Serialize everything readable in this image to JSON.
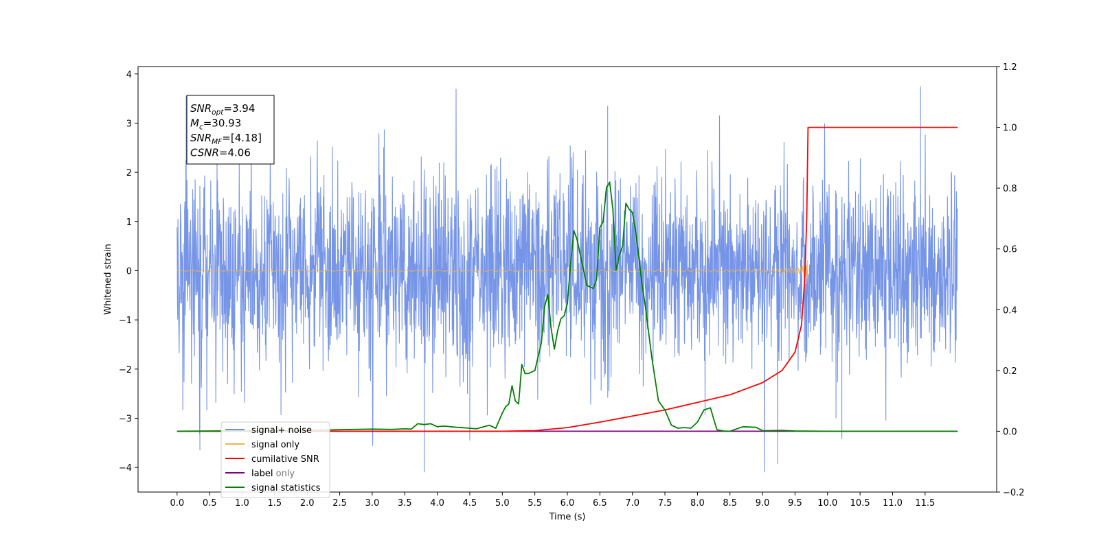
{
  "chart_data": {
    "type": "line",
    "xlabel": "Time (s)",
    "ylabel": "Whitened strain",
    "xlim": [
      -0.6,
      12.6
    ],
    "ylim": [
      -4.5,
      4.15
    ],
    "ylim_right": [
      -0.2,
      1.2
    ],
    "x_ticks": [
      "0.0",
      "0.5",
      "1.0",
      "1.5",
      "2.0",
      "2.5",
      "3.0",
      "3.5",
      "4.0",
      "4.5",
      "5.0",
      "5.5",
      "6.0",
      "6.5",
      "7.0",
      "7.5",
      "8.0",
      "8.5",
      "9.0",
      "9.5",
      "10.0",
      "10.5",
      "11.0",
      "11.5"
    ],
    "y_ticks": [
      {
        "value": 4,
        "label": "4"
      },
      {
        "value": 3,
        "label": "3"
      },
      {
        "value": 2,
        "label": "2"
      },
      {
        "value": 1,
        "label": "1"
      },
      {
        "value": 0,
        "label": "0"
      },
      {
        "value": -1,
        "label": "−1"
      },
      {
        "value": -2,
        "label": "−2"
      },
      {
        "value": -3,
        "label": "−3"
      },
      {
        "value": -4,
        "label": "−4"
      }
    ],
    "y_ticks_right": [
      "1.2",
      "1.0",
      "0.8",
      "0.6",
      "0.4",
      "0.2",
      "0.0",
      "−0.2"
    ],
    "stats_box": {
      "lines": [
        {
          "main": "SNR",
          "sub": "opt",
          "rest": "=3.94"
        },
        {
          "main": "M",
          "sub": "c",
          "rest": "=30.93"
        },
        {
          "main": "SNR",
          "sub": "MF",
          "rest": "=[4.18]"
        },
        {
          "main": "CSNR",
          "sub": "",
          "rest": "=4.06"
        }
      ]
    },
    "legend": {
      "placement": "lower-left",
      "entries": [
        {
          "label": "signal+ noise",
          "color": "#6f8fe6"
        },
        {
          "label": "signal only",
          "color": "#f5b04a"
        },
        {
          "label": "cumilative SNR",
          "color": "#ff0000"
        },
        {
          "label": "label",
          "color": "#800080"
        },
        {
          "label": "signal statistics",
          "color": "#008000"
        }
      ],
      "hidden_behind": "label only"
    },
    "series": [
      {
        "name": "signal+ noise",
        "axis": "left",
        "color": "#6f8fe6",
        "x_range": [
          0.0,
          12.0
        ],
        "noise_envelope": [
          -2.0,
          2.0
        ],
        "spike_max": 3.75,
        "spike_min": -4.1
      },
      {
        "name": "signal only",
        "axis": "left",
        "color": "#f5b04a",
        "x_range": [
          0.0,
          9.7
        ],
        "merger_time": 9.7,
        "peak_amplitude": 0.8
      },
      {
        "name": "cumilative SNR",
        "axis": "right",
        "color": "#ff0000",
        "x": [
          0.0,
          5.0,
          5.5,
          6.0,
          6.5,
          7.0,
          7.5,
          8.0,
          8.5,
          9.0,
          9.3,
          9.5,
          9.6,
          9.65,
          9.68,
          9.7,
          12.0
        ],
        "y": [
          0.0,
          0.0,
          0.002,
          0.012,
          0.03,
          0.05,
          0.07,
          0.095,
          0.12,
          0.16,
          0.2,
          0.26,
          0.35,
          0.5,
          0.7,
          1.0,
          1.0
        ]
      },
      {
        "name": "label",
        "axis": "right",
        "color": "#800080",
        "x": [
          0.0,
          12.0
        ],
        "y": [
          0.0,
          0.0
        ]
      },
      {
        "name": "signal statistics",
        "axis": "right",
        "color": "#008000",
        "x": [
          0.0,
          2.0,
          3.0,
          3.3,
          3.5,
          3.6,
          3.7,
          3.8,
          3.9,
          4.0,
          4.1,
          4.3,
          4.5,
          4.6,
          4.8,
          4.9,
          5.0,
          5.05,
          5.1,
          5.15,
          5.2,
          5.25,
          5.3,
          5.35,
          5.4,
          5.5,
          5.6,
          5.65,
          5.7,
          5.75,
          5.8,
          5.85,
          5.9,
          5.95,
          6.0,
          6.05,
          6.1,
          6.15,
          6.2,
          6.3,
          6.4,
          6.45,
          6.5,
          6.55,
          6.6,
          6.65,
          6.7,
          6.75,
          6.8,
          6.85,
          6.9,
          6.95,
          7.0,
          7.05,
          7.1,
          7.15,
          7.2,
          7.3,
          7.4,
          7.5,
          7.6,
          7.7,
          7.8,
          7.9,
          8.0,
          8.1,
          8.2,
          8.25,
          8.3,
          8.4,
          8.5,
          8.7,
          8.9,
          9.0,
          9.1,
          9.3,
          9.5,
          10.0,
          12.0
        ],
        "y": [
          0.0,
          0.003,
          0.007,
          0.006,
          0.008,
          0.007,
          0.025,
          0.022,
          0.025,
          0.015,
          0.017,
          0.013,
          0.01,
          0.008,
          0.02,
          0.01,
          0.06,
          0.08,
          0.09,
          0.15,
          0.1,
          0.09,
          0.22,
          0.19,
          0.19,
          0.2,
          0.29,
          0.41,
          0.45,
          0.34,
          0.27,
          0.33,
          0.37,
          0.38,
          0.42,
          0.55,
          0.66,
          0.63,
          0.58,
          0.48,
          0.47,
          0.5,
          0.67,
          0.69,
          0.8,
          0.82,
          0.73,
          0.53,
          0.58,
          0.61,
          0.75,
          0.73,
          0.72,
          0.66,
          0.57,
          0.48,
          0.41,
          0.24,
          0.1,
          0.07,
          0.02,
          0.01,
          0.012,
          0.01,
          0.03,
          0.07,
          0.077,
          0.04,
          0.005,
          0.001,
          0.0,
          0.015,
          0.013,
          0.002,
          0.002,
          0.003,
          0.001,
          0.0,
          0.0
        ]
      }
    ]
  }
}
